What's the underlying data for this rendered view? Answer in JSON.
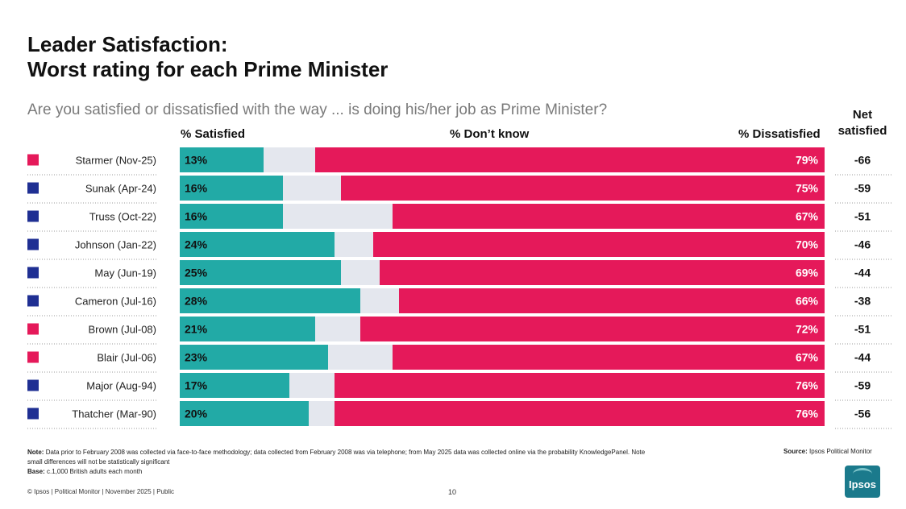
{
  "title_line1": "Leader Satisfaction:",
  "title_line2": "Worst rating for each Prime Minister",
  "question": "Are you satisfied or dissatisfied with the way ... is doing his/her job as Prime Minister?",
  "chart_data": {
    "type": "bar",
    "stacked": true,
    "orientation": "horizontal",
    "headers": {
      "satisfied": "% Satisfied",
      "dont_know": "% Don’t know",
      "dissatisfied": "% Dissatisfied",
      "net_line1": "Net",
      "net_line2": "satisfied"
    },
    "rows": [
      {
        "label": "Starmer (Nov-25)",
        "party": "labour",
        "satisfied": 13,
        "dissatisfied": 79,
        "net": "-66",
        "sat_label": "13%",
        "dis_label": "79%"
      },
      {
        "label": "Sunak (Apr-24)",
        "party": "conservative",
        "satisfied": 16,
        "dissatisfied": 75,
        "net": "-59",
        "sat_label": "16%",
        "dis_label": "75%"
      },
      {
        "label": "Truss (Oct-22)",
        "party": "conservative",
        "satisfied": 16,
        "dissatisfied": 67,
        "net": "-51",
        "sat_label": "16%",
        "dis_label": "67%"
      },
      {
        "label": "Johnson (Jan-22)",
        "party": "conservative",
        "satisfied": 24,
        "dissatisfied": 70,
        "net": "-46",
        "sat_label": "24%",
        "dis_label": "70%"
      },
      {
        "label": "May (Jun-19)",
        "party": "conservative",
        "satisfied": 25,
        "dissatisfied": 69,
        "net": "-44",
        "sat_label": "25%",
        "dis_label": "69%"
      },
      {
        "label": "Cameron (Jul-16)",
        "party": "conservative",
        "satisfied": 28,
        "dissatisfied": 66,
        "net": "-38",
        "sat_label": "28%",
        "dis_label": "66%"
      },
      {
        "label": "Brown (Jul-08)",
        "party": "labour",
        "satisfied": 21,
        "dissatisfied": 72,
        "net": "-51",
        "sat_label": "21%",
        "dis_label": "72%"
      },
      {
        "label": "Blair (Jul-06)",
        "party": "labour",
        "satisfied": 23,
        "dissatisfied": 67,
        "net": "-44",
        "sat_label": "23%",
        "dis_label": "67%"
      },
      {
        "label": "Major (Aug-94)",
        "party": "conservative",
        "satisfied": 17,
        "dissatisfied": 76,
        "net": "-59",
        "sat_label": "17%",
        "dis_label": "76%"
      },
      {
        "label": "Thatcher (Mar-90)",
        "party": "conservative",
        "satisfied": 20,
        "dissatisfied": 76,
        "net": "-56",
        "sat_label": "20%",
        "dis_label": "76%"
      }
    ],
    "xlim": [
      0,
      100
    ]
  },
  "colors": {
    "satisfied": "#22aaa6",
    "dont_know": "#e4e7ee",
    "dissatisfied": "#e5195a",
    "labour": "#e5195a",
    "conservative": "#1f2f93"
  },
  "note_label": "Note:",
  "note_text": "Data prior to February 2008 was collected via face-to-face methodology; data collected from February 2008 was via telephone; from May 2025 data was collected online via the probability KnowledgePanel. Note small differences will not be statistically significant",
  "base_label": "Base:",
  "base_text": "c.1,000 British adults each month",
  "source_label": "Source:",
  "source_text": "Ipsos Political Monitor",
  "footer": "© Ipsos | Political Monitor | November 2025 | Public",
  "page_number": "10",
  "logo_text": "Ipsos"
}
